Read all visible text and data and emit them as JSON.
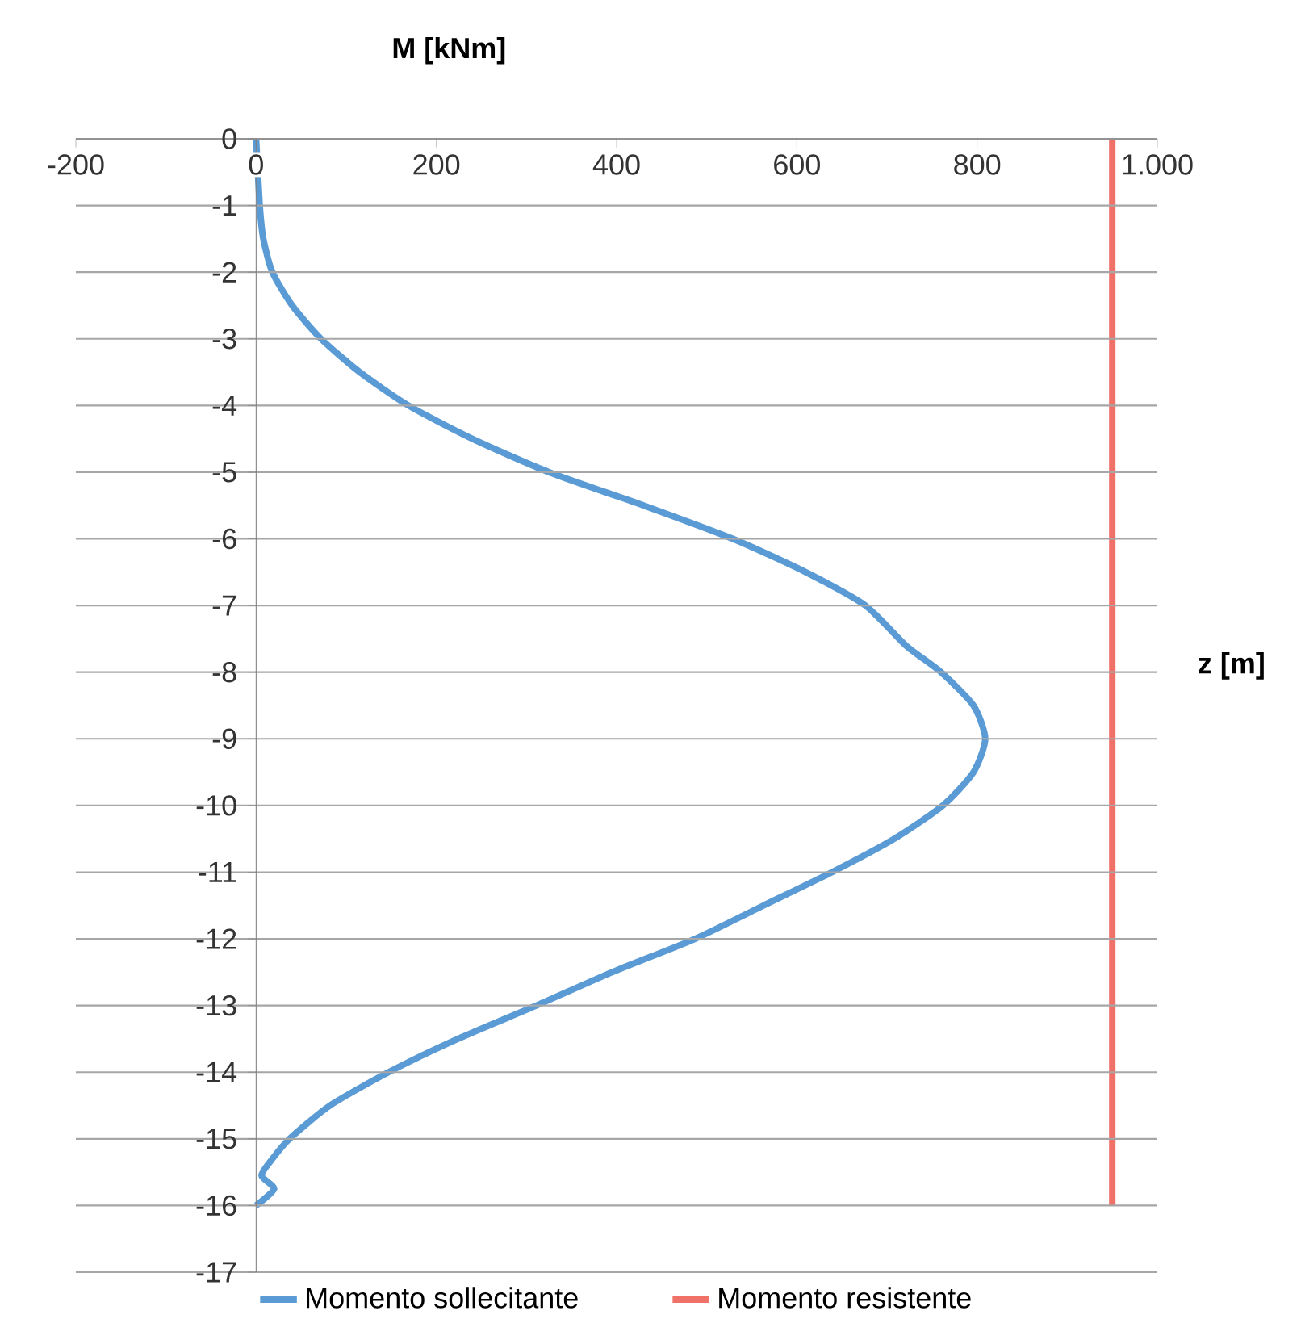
{
  "chart_data": {
    "type": "line",
    "xlabel": "M [kNm]",
    "ylabel": "z [m]",
    "xlim": [
      -200,
      1000
    ],
    "ylim": [
      -17,
      0
    ],
    "xticks": [
      -200,
      0,
      200,
      400,
      600,
      800,
      {
        "value": 1000,
        "label": "1.000"
      }
    ],
    "yticks": [
      0,
      -1,
      -2,
      -3,
      -4,
      -5,
      -6,
      -7,
      -8,
      -9,
      -10,
      -11,
      -12,
      -13,
      -14,
      -15,
      -16,
      -17
    ],
    "grid": "y",
    "legend": "bottom",
    "marker": "none",
    "line_style": "solid",
    "series": [
      {
        "name": "Momento sollecitante",
        "color": "#5b9bd5",
        "x": [
          0,
          4,
          8,
          18,
          40,
          72,
          115,
          169,
          240,
          325,
          430,
          529,
          610,
          676,
          721,
          760,
          796,
          809,
          796,
          762,
          708,
          639,
          563,
          487,
          395,
          311,
          224,
          147,
          82,
          37,
          18,
          6,
          20,
          0
        ],
        "values": [
          0,
          -1,
          -1.5,
          -2,
          -2.5,
          -3,
          -3.5,
          -4,
          -4.5,
          -5,
          -5.5,
          -6,
          -6.5,
          -7,
          -7.6,
          -8,
          -8.5,
          -9,
          -9.5,
          -10,
          -10.5,
          -11,
          -11.5,
          -12,
          -12.5,
          -13,
          -13.5,
          -14,
          -14.5,
          -15,
          -15.3,
          -15.55,
          -15.75,
          -16
        ]
      },
      {
        "name": "Momento resistente",
        "color": "#f07167",
        "x": [
          950,
          950
        ],
        "values": [
          0,
          -16
        ]
      }
    ]
  }
}
